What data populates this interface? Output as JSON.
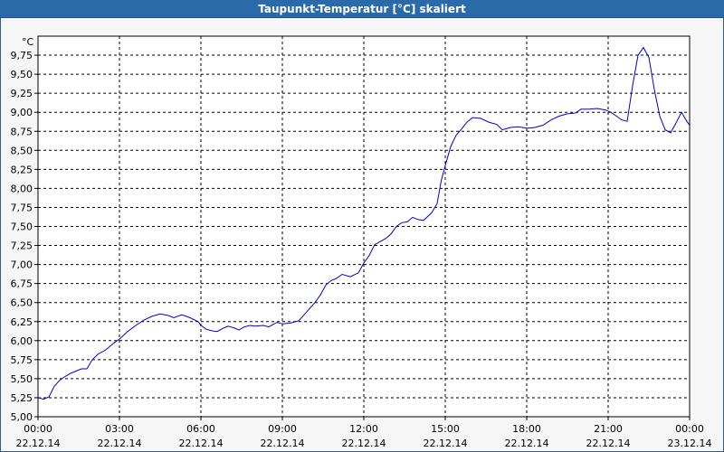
{
  "window": {
    "title": "Taupunkt-Temperatur [°C] skaliert"
  },
  "chart_data": {
    "type": "line",
    "title": "Taupunkt-Temperatur [°C] skaliert",
    "ylabel": "°C",
    "xlabel": "",
    "ylim": [
      5.0,
      10.0
    ],
    "xlim_hours": [
      0,
      24
    ],
    "grid": true,
    "y_ticks": [
      "5,00",
      "5,25",
      "5,50",
      "5,75",
      "6,00",
      "6,25",
      "6,50",
      "6,75",
      "7,00",
      "7,25",
      "7,50",
      "7,75",
      "8,00",
      "8,25",
      "8,50",
      "8,75",
      "9,00",
      "9,25",
      "9,50",
      "9,75"
    ],
    "x_ticks": [
      {
        "time": "00:00",
        "date": "22.12.14"
      },
      {
        "time": "03:00",
        "date": "22.12.14"
      },
      {
        "time": "06:00",
        "date": "22.12.14"
      },
      {
        "time": "09:00",
        "date": "22.12.14"
      },
      {
        "time": "12:00",
        "date": "22.12.14"
      },
      {
        "time": "15:00",
        "date": "22.12.14"
      },
      {
        "time": "18:00",
        "date": "22.12.14"
      },
      {
        "time": "21:00",
        "date": "22.12.14"
      },
      {
        "time": "00:00",
        "date": "23.12.14"
      }
    ],
    "series": [
      {
        "color": "#0000cc",
        "points": [
          [
            0.0,
            5.25
          ],
          [
            0.2,
            5.23
          ],
          [
            0.4,
            5.26
          ],
          [
            0.6,
            5.4
          ],
          [
            0.8,
            5.48
          ],
          [
            1.0,
            5.53
          ],
          [
            1.2,
            5.57
          ],
          [
            1.4,
            5.6
          ],
          [
            1.6,
            5.63
          ],
          [
            1.8,
            5.63
          ],
          [
            2.0,
            5.75
          ],
          [
            2.2,
            5.82
          ],
          [
            2.5,
            5.88
          ],
          [
            2.8,
            5.97
          ],
          [
            3.0,
            6.02
          ],
          [
            3.3,
            6.12
          ],
          [
            3.6,
            6.2
          ],
          [
            3.9,
            6.27
          ],
          [
            4.2,
            6.32
          ],
          [
            4.5,
            6.35
          ],
          [
            4.8,
            6.33
          ],
          [
            5.0,
            6.3
          ],
          [
            5.3,
            6.34
          ],
          [
            5.6,
            6.3
          ],
          [
            5.9,
            6.25
          ],
          [
            6.0,
            6.2
          ],
          [
            6.2,
            6.15
          ],
          [
            6.4,
            6.13
          ],
          [
            6.6,
            6.12
          ],
          [
            6.8,
            6.16
          ],
          [
            7.0,
            6.19
          ],
          [
            7.2,
            6.17
          ],
          [
            7.4,
            6.14
          ],
          [
            7.6,
            6.18
          ],
          [
            7.8,
            6.2
          ],
          [
            8.0,
            6.19
          ],
          [
            8.3,
            6.2
          ],
          [
            8.5,
            6.18
          ],
          [
            8.8,
            6.24
          ],
          [
            9.0,
            6.22
          ],
          [
            9.3,
            6.23
          ],
          [
            9.6,
            6.26
          ],
          [
            9.9,
            6.38
          ],
          [
            10.2,
            6.5
          ],
          [
            10.4,
            6.6
          ],
          [
            10.6,
            6.73
          ],
          [
            10.8,
            6.79
          ],
          [
            11.0,
            6.82
          ],
          [
            11.2,
            6.87
          ],
          [
            11.5,
            6.84
          ],
          [
            11.8,
            6.89
          ],
          [
            12.0,
            7.02
          ],
          [
            12.2,
            7.12
          ],
          [
            12.4,
            7.26
          ],
          [
            12.6,
            7.3
          ],
          [
            12.8,
            7.34
          ],
          [
            13.0,
            7.4
          ],
          [
            13.2,
            7.5
          ],
          [
            13.4,
            7.55
          ],
          [
            13.6,
            7.56
          ],
          [
            13.8,
            7.62
          ],
          [
            14.0,
            7.59
          ],
          [
            14.2,
            7.58
          ],
          [
            14.5,
            7.68
          ],
          [
            14.7,
            7.8
          ],
          [
            14.85,
            8.1
          ],
          [
            15.0,
            8.3
          ],
          [
            15.2,
            8.55
          ],
          [
            15.4,
            8.7
          ],
          [
            15.6,
            8.78
          ],
          [
            15.8,
            8.87
          ],
          [
            16.0,
            8.93
          ],
          [
            16.3,
            8.92
          ],
          [
            16.6,
            8.87
          ],
          [
            16.9,
            8.84
          ],
          [
            17.1,
            8.77
          ],
          [
            17.4,
            8.8
          ],
          [
            17.7,
            8.81
          ],
          [
            18.0,
            8.79
          ],
          [
            18.3,
            8.8
          ],
          [
            18.6,
            8.83
          ],
          [
            18.9,
            8.9
          ],
          [
            19.2,
            8.95
          ],
          [
            19.5,
            8.98
          ],
          [
            19.8,
            8.99
          ],
          [
            20.0,
            9.04
          ],
          [
            20.3,
            9.04
          ],
          [
            20.6,
            9.05
          ],
          [
            20.9,
            9.03
          ],
          [
            21.1,
            9.0
          ],
          [
            21.3,
            8.95
          ],
          [
            21.5,
            8.9
          ],
          [
            21.7,
            8.88
          ],
          [
            21.9,
            9.35
          ],
          [
            22.1,
            9.75
          ],
          [
            22.3,
            9.85
          ],
          [
            22.5,
            9.72
          ],
          [
            22.7,
            9.3
          ],
          [
            22.9,
            8.95
          ],
          [
            23.1,
            8.77
          ],
          [
            23.3,
            8.73
          ],
          [
            23.5,
            8.86
          ],
          [
            23.7,
            9.0
          ],
          [
            23.9,
            8.88
          ],
          [
            24.0,
            8.83
          ]
        ]
      }
    ]
  }
}
